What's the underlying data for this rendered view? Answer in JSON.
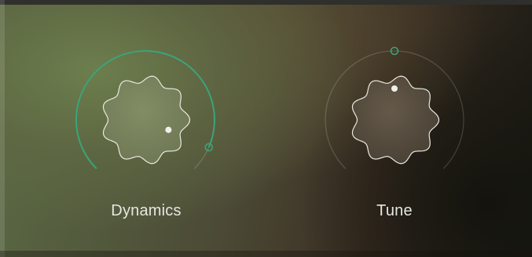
{
  "knobs": [
    {
      "id": "dynamics",
      "label": "Dynamics",
      "value": 0.92,
      "accent": "#3aa47a",
      "active": true
    },
    {
      "id": "tune",
      "label": "Tune",
      "value": 0.5,
      "accent": "#3aa47a",
      "active": false
    }
  ]
}
